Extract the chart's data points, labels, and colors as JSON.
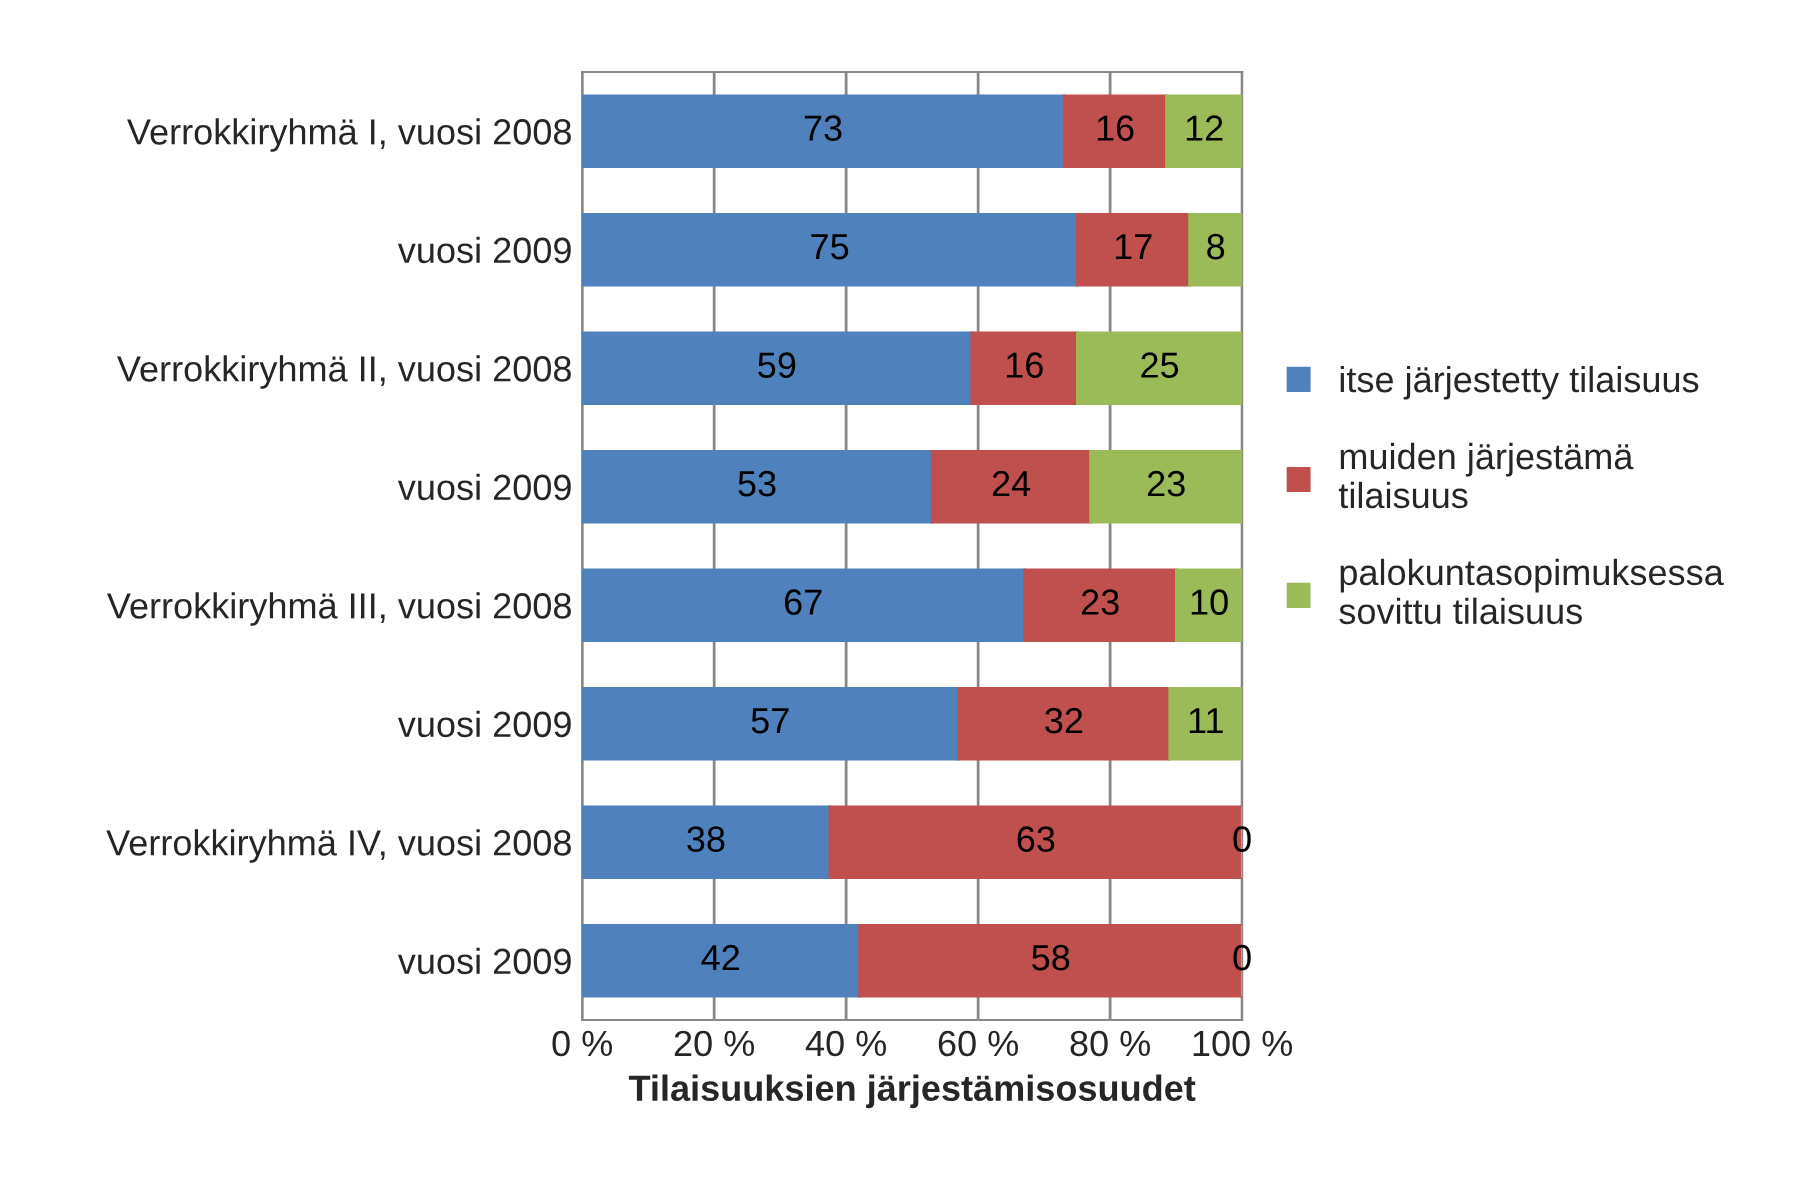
{
  "chart_data": {
    "type": "bar",
    "orientation": "horizontal",
    "stacked": true,
    "xlabel": "Tilaisuuksien järjestämisosuudet",
    "categories": [
      "Verrokkiryhmä I, vuosi 2008",
      "vuosi 2009",
      "Verrokkiryhmä II, vuosi 2008",
      "vuosi 2009",
      "Verrokkiryhmä III, vuosi 2008",
      "vuosi 2009",
      "Verrokkiryhmä IV, vuosi 2008",
      "vuosi 2009"
    ],
    "series": [
      {
        "name": "itse järjestetty tilaisuus",
        "color": "#4f81bd",
        "values": [
          73,
          75,
          59,
          53,
          67,
          57,
          37.5,
          42
        ],
        "value_labels": [
          "73",
          "75",
          "59",
          "53",
          "67",
          "57",
          "38",
          "42"
        ]
      },
      {
        "name": "muiden järjestämä\ntilaisuus",
        "color": "#c0504d",
        "values": [
          15.5,
          17,
          16,
          24,
          23,
          32,
          62.5,
          58
        ],
        "value_labels": [
          "16",
          "17",
          "16",
          "24",
          "23",
          "32",
          "63",
          "58"
        ]
      },
      {
        "name": "palokuntasopimuksessa\nsovittu tilaisuus",
        "color": "#9bbb59",
        "values": [
          11.5,
          8,
          25,
          23,
          10,
          11,
          0,
          0
        ],
        "value_labels": [
          "12",
          "8",
          "25",
          "23",
          "10",
          "11",
          "0",
          "0"
        ]
      }
    ],
    "xlim": [
      0,
      100
    ],
    "xticks": [
      {
        "value": 0,
        "label": "0 %"
      },
      {
        "value": 20,
        "label": "20 %"
      },
      {
        "value": 40,
        "label": "40 %"
      },
      {
        "value": 60,
        "label": "60 %"
      },
      {
        "value": 80,
        "label": "80 %"
      },
      {
        "value": 100,
        "label": "100 %"
      }
    ],
    "grid": "x",
    "legend": "right"
  }
}
